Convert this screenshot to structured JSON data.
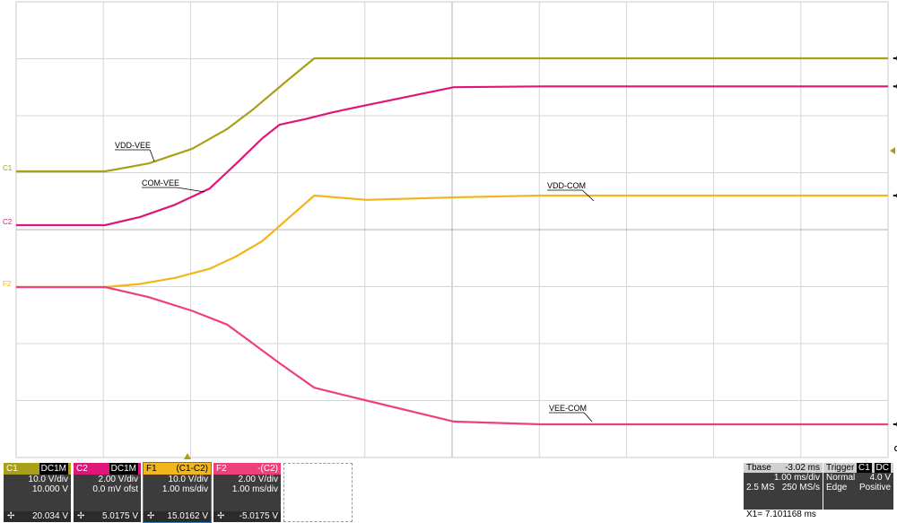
{
  "chart_data": {
    "type": "line",
    "title": "",
    "xlabel": "",
    "ylabel": "",
    "xlim_ms": [
      -3.02,
      6.98
    ],
    "grid": true,
    "series": [
      {
        "name": "VDD-VEE",
        "color": "#a8a018",
        "x": [
          -3.02,
          -2.0,
          -1.5,
          -1.0,
          -0.6,
          -0.3,
          0.1,
          0.4,
          1.0,
          3.0,
          6.98
        ],
        "y": [
          0,
          0,
          1.4,
          4.0,
          7.5,
          11.0,
          16.2,
          20.0,
          20.0,
          20.0,
          20.0
        ]
      },
      {
        "name": "COM-VEE",
        "color": "#e0147a",
        "x": [
          -3.02,
          -2.0,
          -1.6,
          -1.2,
          -0.8,
          -0.5,
          -0.2,
          0.0,
          0.3,
          0.6,
          1.0,
          2.0,
          3.0,
          6.98
        ],
        "y": [
          0,
          0,
          1.0,
          2.5,
          4.5,
          7.5,
          10.6,
          12.3,
          13.0,
          13.8,
          14.7,
          16.9,
          17.0,
          17.0
        ]
      },
      {
        "name": "VDD-COM",
        "color": "#f2b51c",
        "x": [
          -3.02,
          -2.0,
          -1.6,
          -1.2,
          -0.8,
          -0.5,
          -0.2,
          0.0,
          0.4,
          1.0,
          2.0,
          3.0,
          6.98
        ],
        "y": [
          0,
          0,
          0.5,
          1.5,
          3.0,
          5.0,
          7.5,
          10.0,
          15.0,
          14.3,
          14.7,
          15.0,
          15.0
        ]
      },
      {
        "name": "VEE-COM",
        "color": "#f0407a",
        "x": [
          -3.02,
          -2.0,
          -1.5,
          -1.0,
          -0.6,
          -0.3,
          0.0,
          0.4,
          1.0,
          2.0,
          3.0,
          6.98
        ],
        "y": [
          0,
          0,
          -1.1,
          -2.6,
          -4.1,
          -6.2,
          -8.3,
          -11.0,
          -12.4,
          -14.7,
          -15.0,
          -15.0
        ]
      }
    ],
    "cursor_x_ms": 7.101168,
    "cursor_label": "C2",
    "trace_labels": [
      "VDD-VEE",
      "COM-VEE",
      "VDD-COM",
      "VEE-COM"
    ],
    "ch_markers": [
      "C1",
      "C2",
      "F2"
    ]
  },
  "channels": [
    {
      "id": "C1",
      "color": "#a8a018",
      "coupling": "DC1M",
      "line1": "10.0 V/div",
      "line2": "10.000 V",
      "value": "20.034 V"
    },
    {
      "id": "C2",
      "color": "#e0147a",
      "coupling": "DC1M",
      "line1": "2.00 V/div",
      "line2": "0.0 mV ofst",
      "value": "5.0175 V"
    },
    {
      "id": "F1",
      "color": "#f2b51c",
      "coupling": "(C1-C2)",
      "line1": "10.0 V/div",
      "line2": "1.00 ms/div",
      "value": "15.0162 V"
    },
    {
      "id": "F2",
      "color": "#f0407a",
      "coupling": "-(C2)",
      "line1": "2.00 V/div",
      "line2": "1.00 ms/div",
      "value": "-5.0175 V"
    }
  ],
  "timebase": {
    "label": "Tbase",
    "offset": "-3.02 ms",
    "div": "1.00 ms/div",
    "samples": "2.5 MS",
    "rate": "250 MS/s"
  },
  "trigger": {
    "label": "Trigger",
    "src": "C1",
    "coupling": "DC",
    "mode": "Normal",
    "level": "4.0 V",
    "type": "Edge",
    "slope": "Positive"
  },
  "cursor_readout": "X1=  7.101168 ms"
}
